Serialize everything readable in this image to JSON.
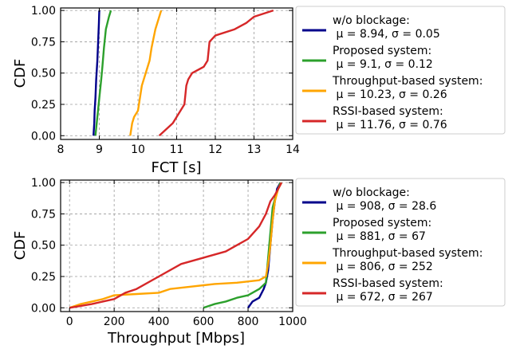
{
  "chart_data": [
    {
      "type": "line",
      "xlabel": "FCT [s]",
      "ylabel": "CDF",
      "xlim": [
        8,
        14
      ],
      "ylim": [
        -0.03,
        1.02
      ],
      "xticks": [
        "8",
        "9",
        "10",
        "11",
        "12",
        "13",
        "14"
      ],
      "yticks": [
        "0.00",
        "0.25",
        "0.50",
        "0.75",
        "1.00"
      ],
      "grid": true,
      "legend_position": "right",
      "series": [
        {
          "name": "w/o blockage",
          "stats": "μ = 8.94, σ = 0.05",
          "color": "#00008b",
          "points": [
            [
              8.85,
              0.0
            ],
            [
              8.87,
              0.1
            ],
            [
              8.88,
              0.2
            ],
            [
              8.9,
              0.3
            ],
            [
              8.92,
              0.45
            ],
            [
              8.95,
              0.6
            ],
            [
              8.97,
              0.75
            ],
            [
              8.99,
              0.9
            ],
            [
              9.0,
              1.0
            ]
          ]
        },
        {
          "name": "Proposed system",
          "stats": "μ = 9.1, σ = 0.12",
          "color": "#2ca02c",
          "points": [
            [
              8.9,
              0.0
            ],
            [
              8.95,
              0.15
            ],
            [
              9.0,
              0.3
            ],
            [
              9.05,
              0.45
            ],
            [
              9.08,
              0.55
            ],
            [
              9.12,
              0.7
            ],
            [
              9.17,
              0.85
            ],
            [
              9.25,
              0.95
            ],
            [
              9.3,
              1.0
            ]
          ]
        },
        {
          "name": "Throughput-based system",
          "stats": "μ = 10.23, σ = 0.26",
          "color": "#ffa500",
          "points": [
            [
              9.8,
              0.0
            ],
            [
              9.85,
              0.1
            ],
            [
              9.9,
              0.15
            ],
            [
              10.0,
              0.2
            ],
            [
              10.05,
              0.3
            ],
            [
              10.1,
              0.4
            ],
            [
              10.15,
              0.45
            ],
            [
              10.2,
              0.5
            ],
            [
              10.25,
              0.55
            ],
            [
              10.3,
              0.6
            ],
            [
              10.35,
              0.7
            ],
            [
              10.45,
              0.85
            ],
            [
              10.55,
              0.95
            ],
            [
              10.6,
              1.0
            ]
          ]
        },
        {
          "name": "RSSI-based system",
          "stats": "μ = 11.76, σ = 0.76",
          "color": "#d62728",
          "points": [
            [
              10.55,
              0.0
            ],
            [
              10.9,
              0.1
            ],
            [
              11.0,
              0.15
            ],
            [
              11.2,
              0.25
            ],
            [
              11.25,
              0.4
            ],
            [
              11.3,
              0.45
            ],
            [
              11.4,
              0.5
            ],
            [
              11.7,
              0.55
            ],
            [
              11.8,
              0.6
            ],
            [
              11.85,
              0.75
            ],
            [
              12.0,
              0.8
            ],
            [
              12.5,
              0.85
            ],
            [
              12.8,
              0.9
            ],
            [
              13.0,
              0.95
            ],
            [
              13.5,
              1.0
            ]
          ]
        }
      ]
    },
    {
      "type": "line",
      "xlabel": "Throughput [Mbps]",
      "ylabel": "CDF",
      "xlim": [
        -40,
        1000
      ],
      "ylim": [
        -0.03,
        1.02
      ],
      "xticks": [
        "0",
        "200",
        "400",
        "600",
        "800",
        "1000"
      ],
      "yticks": [
        "0.00",
        "0.25",
        "0.50",
        "0.75",
        "1.00"
      ],
      "grid": true,
      "legend_position": "right",
      "series": [
        {
          "name": "w/o blockage",
          "stats": "μ = 908, σ = 28.6",
          "color": "#00008b",
          "points": [
            [
              800,
              0.0
            ],
            [
              820,
              0.05
            ],
            [
              850,
              0.08
            ],
            [
              870,
              0.15
            ],
            [
              880,
              0.2
            ],
            [
              890,
              0.3
            ],
            [
              900,
              0.5
            ],
            [
              910,
              0.7
            ],
            [
              920,
              0.85
            ],
            [
              930,
              0.95
            ],
            [
              945,
              1.0
            ]
          ]
        },
        {
          "name": "Proposed system",
          "stats": "μ = 881, σ = 67",
          "color": "#2ca02c",
          "points": [
            [
              600,
              0.0
            ],
            [
              650,
              0.03
            ],
            [
              700,
              0.05
            ],
            [
              750,
              0.08
            ],
            [
              800,
              0.1
            ],
            [
              850,
              0.15
            ],
            [
              880,
              0.2
            ],
            [
              890,
              0.4
            ],
            [
              900,
              0.6
            ],
            [
              910,
              0.8
            ],
            [
              925,
              0.9
            ],
            [
              945,
              1.0
            ]
          ]
        },
        {
          "name": "Throughput-based system",
          "stats": "μ = 806, σ = 252",
          "color": "#ffa500",
          "points": [
            [
              0,
              0.0
            ],
            [
              50,
              0.03
            ],
            [
              100,
              0.05
            ],
            [
              150,
              0.07
            ],
            [
              200,
              0.1
            ],
            [
              300,
              0.11
            ],
            [
              400,
              0.12
            ],
            [
              450,
              0.15
            ],
            [
              550,
              0.17
            ],
            [
              650,
              0.19
            ],
            [
              750,
              0.2
            ],
            [
              850,
              0.22
            ],
            [
              880,
              0.25
            ],
            [
              890,
              0.35
            ],
            [
              900,
              0.5
            ],
            [
              910,
              0.7
            ],
            [
              920,
              0.85
            ],
            [
              935,
              0.95
            ],
            [
              950,
              1.0
            ]
          ]
        },
        {
          "name": "RSSI-based system",
          "stats": "μ = 672, σ = 267",
          "color": "#d62728",
          "points": [
            [
              0,
              0.0
            ],
            [
              100,
              0.03
            ],
            [
              200,
              0.07
            ],
            [
              250,
              0.12
            ],
            [
              300,
              0.15
            ],
            [
              400,
              0.25
            ],
            [
              500,
              0.35
            ],
            [
              600,
              0.4
            ],
            [
              700,
              0.45
            ],
            [
              750,
              0.5
            ],
            [
              800,
              0.55
            ],
            [
              850,
              0.65
            ],
            [
              880,
              0.75
            ],
            [
              900,
              0.85
            ],
            [
              920,
              0.9
            ],
            [
              935,
              0.95
            ],
            [
              950,
              1.0
            ]
          ]
        }
      ]
    }
  ]
}
